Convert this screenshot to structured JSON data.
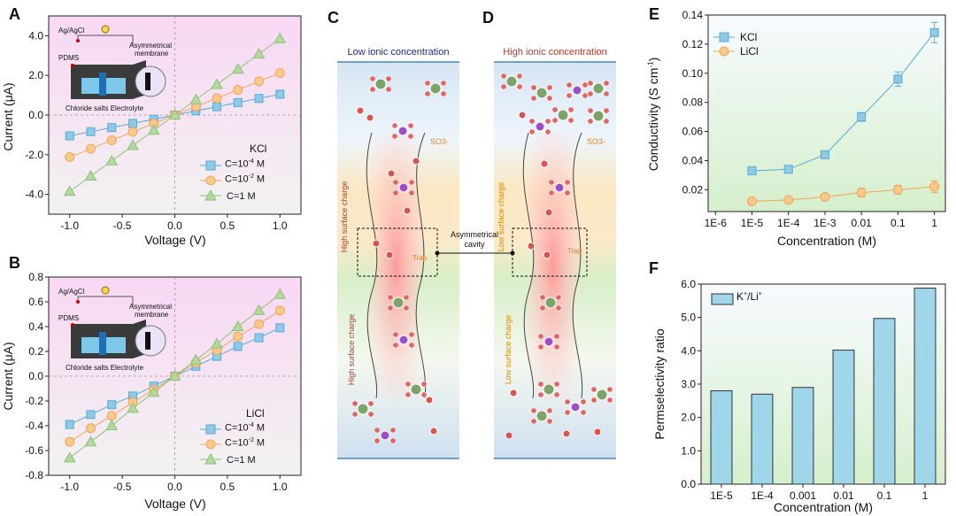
{
  "figure": {
    "panel_letters": {
      "a": "A",
      "b": "B",
      "c": "C",
      "d": "D",
      "e": "E",
      "f": "F"
    }
  },
  "colors": {
    "kcl_marker": "#8ecae6",
    "kcl_line": "#5aa9d6",
    "lowc_marker": "#f7c98b",
    "lowc_line": "#f2a65a",
    "highc_marker": "#b5d99c",
    "highc_line": "#8bc17a",
    "bar_fill": "#9fd6ea",
    "bar_stroke": "#333333",
    "panel_ab_bg_top": "#f9d9f4",
    "panel_ab_bg_bottom": "#f3f3f3",
    "panel_ef_bg_top": "#f6fbff",
    "panel_ef_bg_bottom": "#d8f1d0"
  },
  "chart_data": [
    {
      "id": "A",
      "type": "line",
      "xlabel": "Voltage (V)",
      "ylabel": "Current (μA)",
      "xlim": [
        -1.2,
        1.2
      ],
      "ylim": [
        -5.0,
        5.0
      ],
      "xticks": [
        "-1.0",
        "-0.5",
        "0.0",
        "0.5",
        "1.0"
      ],
      "yticks": [
        "4.0",
        "2.0",
        "0.0",
        "-2.0",
        "-4.0"
      ],
      "legend_title": "KCl",
      "legend_position": "center-right",
      "x": [
        -1.0,
        -0.8,
        -0.6,
        -0.4,
        -0.2,
        0.0,
        0.2,
        0.4,
        0.6,
        0.8,
        1.0
      ],
      "series": [
        {
          "name": "C=10-4 M",
          "label_html": "C=10<sup>-4</sup> M",
          "marker": "square",
          "values": [
            -1.05,
            -0.84,
            -0.63,
            -0.42,
            -0.21,
            0.0,
            0.21,
            0.42,
            0.63,
            0.84,
            1.05
          ]
        },
        {
          "name": "C=10-2 M",
          "label_html": "C=10<sup>-2</sup> M",
          "marker": "circle",
          "values": [
            -2.12,
            -1.7,
            -1.27,
            -0.85,
            -0.42,
            0.0,
            0.42,
            0.85,
            1.27,
            1.7,
            2.12
          ]
        },
        {
          "name": "C=1 M",
          "label_html": "C=1 M",
          "marker": "triangle",
          "values": [
            -3.85,
            -3.08,
            -2.31,
            -1.54,
            -0.77,
            0.0,
            0.77,
            1.54,
            2.31,
            3.08,
            3.85
          ]
        }
      ],
      "inset_labels": [
        "Ag/AgCl",
        "Asymmetrical membrane",
        "PDMS",
        "Chloride salts Electrolyte"
      ]
    },
    {
      "id": "B",
      "type": "line",
      "xlabel": "Voltage (V)",
      "ylabel": "Current (μA)",
      "xlim": [
        -1.2,
        1.2
      ],
      "ylim": [
        -0.8,
        0.8
      ],
      "xticks": [
        "-1.0",
        "-0.5",
        "0.0",
        "0.5",
        "1.0"
      ],
      "yticks": [
        "0.8",
        "0.6",
        "0.4",
        "0.2",
        "0.0",
        "-0.2",
        "-0.4",
        "-0.6",
        "-0.8"
      ],
      "legend_title": "LiCl",
      "legend_position": "bottom-right",
      "x": [
        -1.0,
        -0.8,
        -0.6,
        -0.4,
        -0.2,
        0.0,
        0.2,
        0.4,
        0.6,
        0.8,
        1.0
      ],
      "series": [
        {
          "name": "C=10-4 M",
          "label_html": "C=10<sup>-4</sup> M",
          "marker": "square",
          "values": [
            -0.39,
            -0.31,
            -0.23,
            -0.16,
            -0.08,
            0.0,
            0.08,
            0.16,
            0.24,
            0.31,
            0.39
          ]
        },
        {
          "name": "C=10-2 M",
          "label_html": "C=10<sup>-2</sup> M",
          "marker": "circle",
          "values": [
            -0.53,
            -0.42,
            -0.32,
            -0.21,
            -0.11,
            0.0,
            0.11,
            0.21,
            0.32,
            0.42,
            0.53
          ]
        },
        {
          "name": "C=1 M",
          "label_html": "C=1 M",
          "marker": "triangle",
          "values": [
            -0.66,
            -0.53,
            -0.4,
            -0.26,
            -0.13,
            0.0,
            0.13,
            0.26,
            0.4,
            0.53,
            0.66
          ]
        }
      ],
      "inset_labels": [
        "Ag/AgCl",
        "Asymmetrical membrane",
        "PDMS",
        "Chloride salts Electrolyte"
      ]
    },
    {
      "id": "E",
      "type": "line",
      "xlabel": "Concentration (M)",
      "ylabel": "Conductivity (S cm-1)",
      "xscale": "log",
      "xlim_log10": [
        -6.2,
        0.3
      ],
      "ylim": [
        0.005,
        0.14
      ],
      "xticks": [
        "1E-6",
        "1E-5",
        "1E-4",
        "1E-3",
        "0.01",
        "0.1",
        "1"
      ],
      "yticks": [
        "0.14",
        "0.12",
        "0.10",
        "0.08",
        "0.06",
        "0.04",
        "0.02"
      ],
      "legend_position": "top-left",
      "x_log10": [
        -5,
        -4,
        -3,
        -2,
        -1,
        0
      ],
      "series": [
        {
          "name": "KCl",
          "marker": "square",
          "values": [
            0.033,
            0.034,
            0.044,
            0.07,
            0.096,
            0.128
          ],
          "errors": [
            0.001,
            0.001,
            0.001,
            0.003,
            0.005,
            0.007
          ]
        },
        {
          "name": "LiCl",
          "marker": "circle",
          "values": [
            0.012,
            0.013,
            0.015,
            0.018,
            0.02,
            0.022
          ],
          "errors": [
            0.001,
            0.001,
            0.001,
            0.003,
            0.003,
            0.004
          ]
        }
      ]
    },
    {
      "id": "F",
      "type": "bar",
      "xlabel": "Concentration (M)",
      "ylabel": "Permselectivity ratio",
      "ylim": [
        0.0,
        6.0
      ],
      "categories": [
        "1E-5",
        "1E-4",
        "0.001",
        "0.01",
        "0.1",
        "1"
      ],
      "yticks": [
        "6.0",
        "5.0",
        "4.0",
        "3.0",
        "2.0",
        "1.0",
        "0.0"
      ],
      "legend_position": "top-left",
      "series": [
        {
          "name": "K+/Li+",
          "values": [
            2.8,
            2.7,
            2.9,
            4.02,
            4.97,
            5.88
          ]
        }
      ]
    }
  ],
  "schematic": {
    "c_title": "Low ionic concentration",
    "d_title": "High ionic concentration",
    "c_top_label": "High surface charge",
    "c_bottom_label": "High surface charge",
    "d_top_label": "Low surface charge",
    "d_bottom_label": "Low surface charge",
    "cavity_label": "Asymmetrical cavity",
    "so3_label": "SO3-",
    "trap_label": "Trap"
  }
}
